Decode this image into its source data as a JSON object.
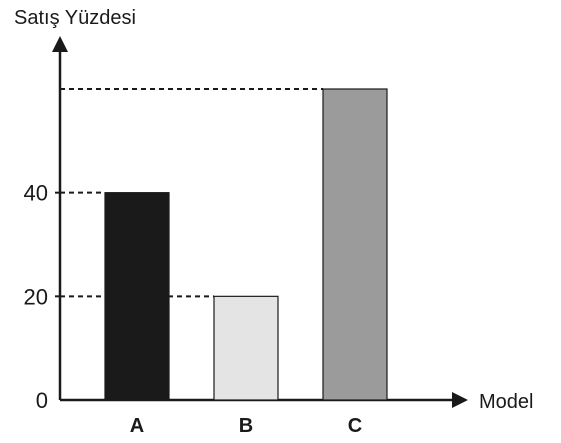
{
  "chart_data": {
    "type": "bar",
    "title": "",
    "ylabel": "Satış Yüzdesi",
    "xlabel": "Model",
    "categories": [
      "A",
      "B",
      "C"
    ],
    "values": [
      40,
      20,
      60
    ],
    "ylim": [
      0,
      60
    ],
    "y_ticks": [
      "0",
      "20",
      "40"
    ],
    "y_tick_values": [
      0,
      20,
      40
    ],
    "grid": false,
    "bar_colors": [
      "#1a1a1a",
      "#e4e4e4",
      "#9a9b9a"
    ],
    "dashed_reference_lines": true,
    "value_labels_shown": false
  }
}
